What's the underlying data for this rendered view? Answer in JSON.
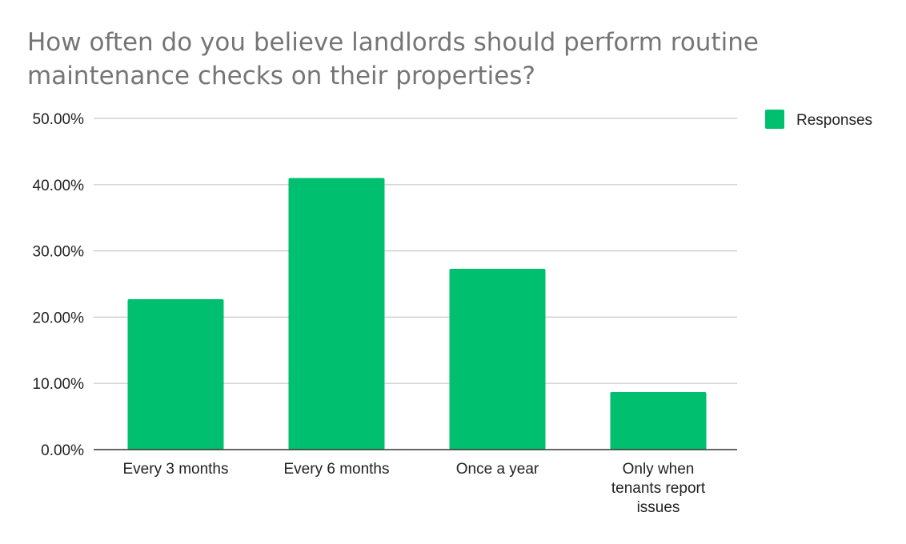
{
  "chart_data": {
    "type": "bar",
    "title": "How often do you believe landlords should perform routine maintenance checks on their properties?",
    "categories": [
      "Every 3 months",
      "Every 6 months",
      "Once a year",
      "Only when tenants report issues"
    ],
    "category_label_lines": [
      [
        "Every 3 months"
      ],
      [
        "Every 6 months"
      ],
      [
        "Once a year"
      ],
      [
        "Only when",
        "tenants report",
        "issues"
      ]
    ],
    "series": [
      {
        "name": "Responses",
        "values": [
          22.7,
          41.0,
          27.3,
          8.7
        ],
        "color": "#00BF6F"
      }
    ],
    "ylim": [
      0,
      50
    ],
    "yticks": [
      0,
      10,
      20,
      30,
      40,
      50
    ],
    "ytick_labels": [
      "0.00%",
      "10.00%",
      "20.00%",
      "30.00%",
      "40.00%",
      "50.00%"
    ],
    "xlabel": "",
    "ylabel": "",
    "grid": true,
    "legend_position": "top-right"
  }
}
